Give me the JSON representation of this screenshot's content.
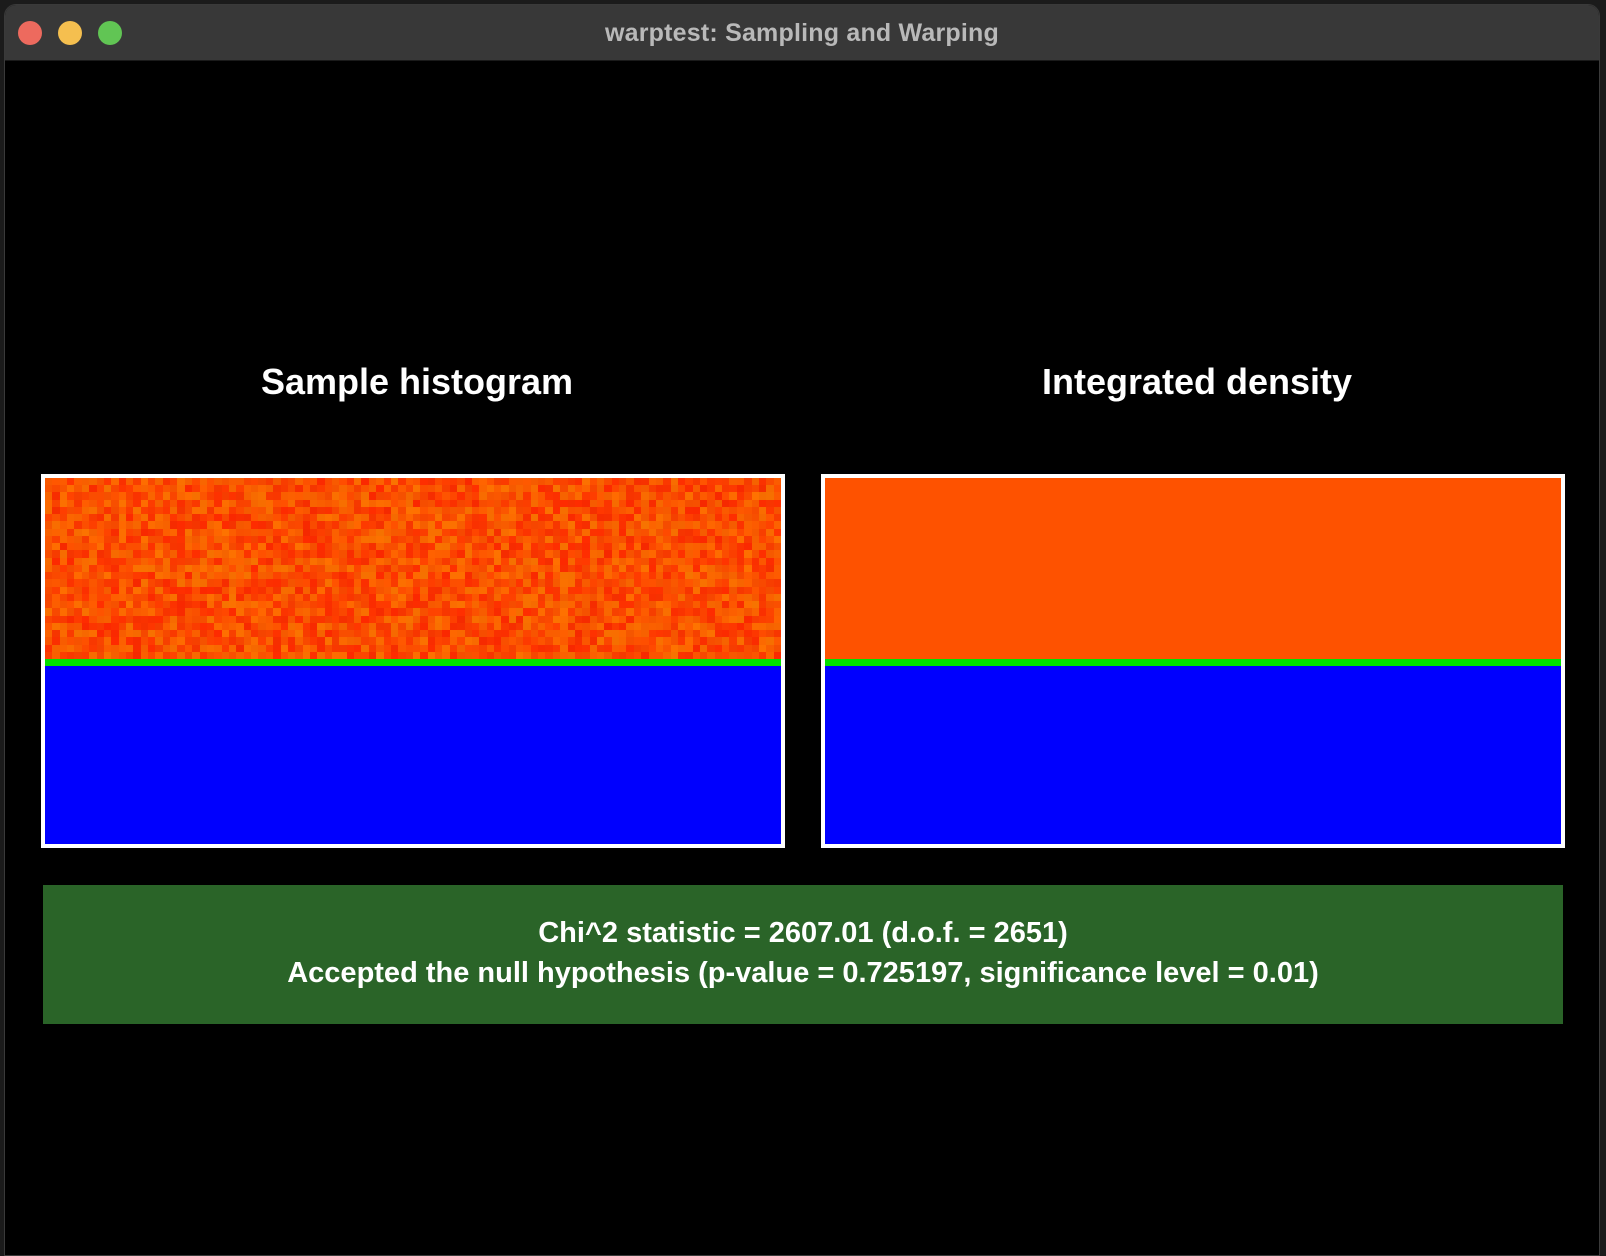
{
  "window": {
    "title": "warptest: Sampling and Warping"
  },
  "panels": [
    {
      "title": "Sample histogram"
    },
    {
      "title": "Integrated density"
    }
  ],
  "colors": {
    "hot": "#fe5200",
    "green": "#00e000",
    "blue": "#0000fe",
    "result_bg": "#2a6428"
  },
  "result": {
    "line1": "Chi^2 statistic = 2607.01 (d.o.f. = 2651)",
    "line2": "Accepted the null hypothesis (p-value = 0.725197, significance level = 0.01)"
  }
}
